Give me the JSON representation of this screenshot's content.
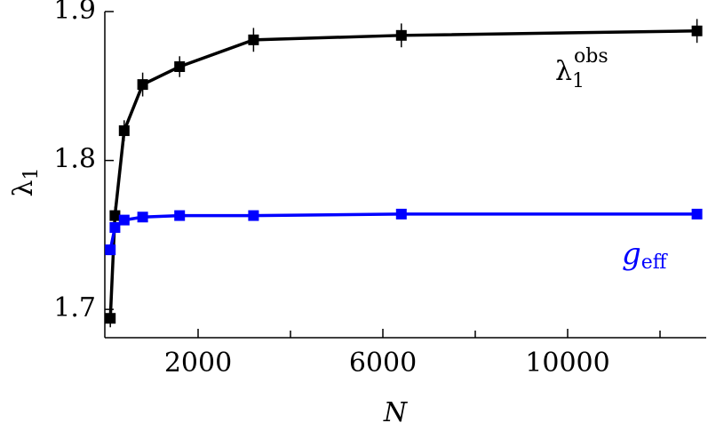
{
  "chart_data": {
    "type": "line",
    "x_label": "N",
    "y_label": [
      "λ",
      "1"
    ],
    "x": [
      100,
      200,
      400,
      800,
      1600,
      3200,
      6400,
      12800
    ],
    "series": [
      {
        "name": [
          "λ",
          "1",
          "obs"
        ],
        "color": "#000000",
        "values": [
          1.694,
          1.763,
          1.82,
          1.851,
          1.863,
          1.881,
          1.884,
          1.887
        ],
        "errors": [
          0.006,
          0.006,
          0.007,
          0.008,
          0.007,
          0.008,
          0.008,
          0.008
        ]
      },
      {
        "name": [
          "g",
          "eff"
        ],
        "color": "#0000ff",
        "values": [
          1.74,
          1.755,
          1.76,
          1.762,
          1.763,
          1.763,
          1.764,
          1.764
        ]
      }
    ],
    "xlim": [
      0,
      13000
    ],
    "ylim": [
      1.681,
      1.9
    ],
    "xticks": [
      2000,
      6000,
      10000
    ],
    "xminor_ticks": [
      4000,
      8000,
      12000
    ],
    "yticks": [
      1.7,
      1.8,
      1.9
    ],
    "grid": false
  }
}
